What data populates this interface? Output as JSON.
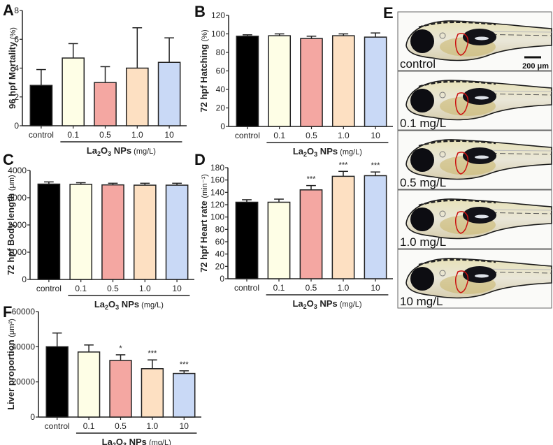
{
  "figure": {
    "panel_labels": [
      "A",
      "B",
      "C",
      "D",
      "E",
      "F"
    ],
    "group_label": {
      "main": "La",
      "sub1": "2",
      "mid": "O",
      "sub2": "3",
      "tail": " NPs",
      "unit": " (mg/L)"
    }
  },
  "colors": {
    "control": "#000000",
    "c0_1": "#fefee6",
    "c0_5": "#f4a7a2",
    "c1_0": "#fde0c2",
    "c10": "#c9d9f6",
    "outline": "#222222",
    "liver_outline": "#cc1111"
  },
  "chart_data": [
    {
      "id": "A",
      "type": "bar",
      "title": "",
      "categories": [
        "control",
        "0.1",
        "0.5",
        "1.0",
        "10"
      ],
      "values": [
        2.8,
        4.7,
        3.0,
        4.0,
        4.4
      ],
      "errors": [
        1.1,
        1.0,
        1.1,
        2.8,
        1.7
      ],
      "significance": [
        "",
        "",
        "",
        "",
        ""
      ],
      "ylabel": "96 hpf Mortality",
      "yunit": "(%)",
      "ylim": [
        0,
        8
      ],
      "yticks": [
        0,
        2,
        4,
        6,
        8
      ],
      "ytick_labels": [
        "0",
        "2",
        "4",
        "6",
        "8"
      ],
      "xlabel": "La2O3 NPs (mg/L)",
      "grid": false
    },
    {
      "id": "B",
      "type": "bar",
      "categories": [
        "control",
        "0.1",
        "0.5",
        "1.0",
        "10"
      ],
      "values": [
        97.5,
        98,
        95,
        98,
        96.5
      ],
      "errors": [
        1.5,
        2,
        2.5,
        2,
        4.5
      ],
      "significance": [
        "",
        "",
        "",
        "",
        ""
      ],
      "ylabel": "72 hpf Hatching",
      "yunit": "(%)",
      "ylim": [
        0,
        120
      ],
      "yticks": [
        0,
        20,
        40,
        60,
        80,
        100,
        120
      ],
      "ytick_labels": [
        "0",
        "20",
        "40",
        "60",
        "80",
        "100",
        "120"
      ],
      "xlabel": "La2O3 NPs (mg/L)",
      "grid": false
    },
    {
      "id": "C",
      "type": "bar",
      "categories": [
        "control",
        "0.1",
        "0.5",
        "1.0",
        "10"
      ],
      "values": [
        3500,
        3490,
        3470,
        3460,
        3460
      ],
      "errors": [
        80,
        60,
        60,
        70,
        70
      ],
      "significance": [
        "",
        "",
        "",
        "",
        ""
      ],
      "ylabel": "72 hpf Body length",
      "yunit": "(μm)",
      "ylim": [
        0,
        4000
      ],
      "yticks": [
        0,
        1000,
        2000,
        3000,
        4000
      ],
      "ytick_labels": [
        "0",
        "1000",
        "2000",
        "3000",
        "4000"
      ],
      "xlabel": "La2O3 NPs (mg/L)",
      "grid": false
    },
    {
      "id": "D",
      "type": "bar",
      "categories": [
        "control",
        "0.1",
        "0.5",
        "1.0",
        "10"
      ],
      "values": [
        124,
        124,
        144,
        166,
        167
      ],
      "errors": [
        4,
        5,
        7,
        8,
        6
      ],
      "significance": [
        "",
        "",
        "***",
        "***",
        "***"
      ],
      "ylabel": "72 hpf Heart rate",
      "yunit": "(min⁻¹)",
      "ylim": [
        0,
        180
      ],
      "yticks": [
        0,
        20,
        40,
        60,
        80,
        100,
        120,
        140,
        160,
        180
      ],
      "ytick_labels": [
        "0",
        "20",
        "40",
        "60",
        "80",
        "100",
        "120",
        "140",
        "160",
        "180"
      ],
      "xlabel": "La2O3 NPs (mg/L)",
      "grid": false
    },
    {
      "id": "F",
      "type": "bar",
      "categories": [
        "control",
        "0.1",
        "0.5",
        "1.0",
        "10"
      ],
      "values": [
        40000,
        37000,
        32200,
        27500,
        24800
      ],
      "errors": [
        7800,
        4000,
        3200,
        5000,
        1500
      ],
      "significance": [
        "",
        "",
        "*",
        "***",
        "***"
      ],
      "ylabel": "Liver proportion",
      "yunit": "(μm²)",
      "ylim": [
        0,
        60000
      ],
      "yticks": [
        0,
        20000,
        40000,
        60000
      ],
      "ytick_labels": [
        "0",
        "20000",
        "40000",
        "60000"
      ],
      "xlabel": "La2O3 NPs (mg/L)",
      "grid": false
    }
  ],
  "panel_e": {
    "frames": [
      {
        "label": "control"
      },
      {
        "label": "0.1 mg/L"
      },
      {
        "label": "0.5 mg/L"
      },
      {
        "label": "1.0 mg/L"
      },
      {
        "label": "10 mg/L"
      }
    ],
    "scale_bar_label": "200 μm"
  }
}
